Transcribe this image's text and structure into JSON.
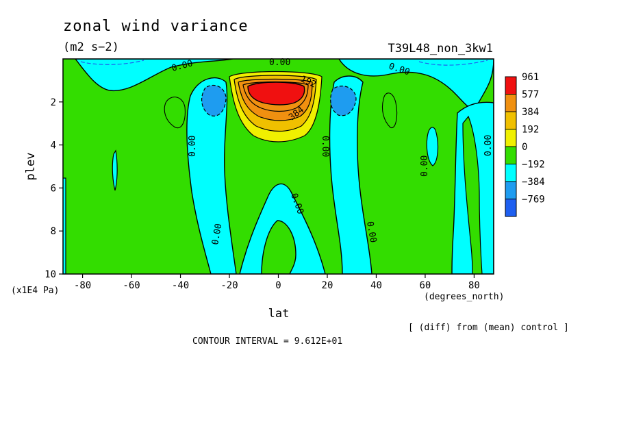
{
  "chart_data": {
    "type": "heatmap",
    "title": "zonal wind variance",
    "units": "(m2 s−2)",
    "run_label": "T39L48_non_3kw1",
    "xlabel": "lat",
    "x_units": "(degrees_north)",
    "ylabel": "plev",
    "y_units": "(x1E4 Pa)",
    "x_range": [
      -88,
      88
    ],
    "y_range": [
      0,
      10
    ],
    "y_inverted": true,
    "x_ticks": [
      -80,
      -60,
      -40,
      -20,
      0,
      20,
      40,
      60,
      80
    ],
    "y_ticks": [
      2,
      4,
      6,
      8,
      10
    ],
    "colorbar": {
      "labels": [
        "961",
        "577",
        "384",
        "192",
        "0",
        "−192",
        "−384",
        "−769"
      ],
      "colors": [
        "#f01010",
        "#f09010",
        "#f0c000",
        "#f0f000",
        "#33dd00",
        "#00ffff",
        "#1e9cf0",
        "#1e5ff0"
      ]
    },
    "contour_labels": [
      "0.00",
      "0.00",
      "0.00",
      "0.00",
      "0.00",
      "0.00",
      "0.00",
      "0.00",
      "0.00",
      "0.00",
      "192",
      "384"
    ],
    "diff_note": "[ (diff) from (mean) control ]",
    "contour_interval": "CONTOUR INTERVAL = 9.612E+01"
  }
}
